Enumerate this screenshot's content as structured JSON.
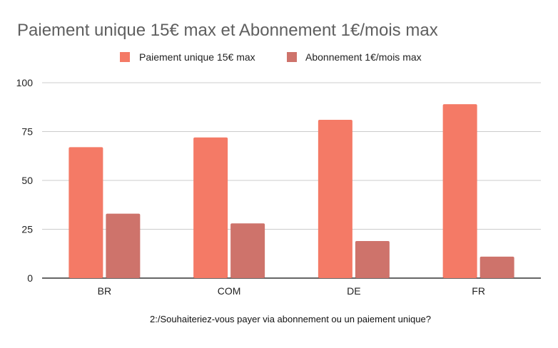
{
  "chart_data": {
    "type": "bar",
    "title": "Paiement unique 15€ max et Abonnement 1€/mois max",
    "xlabel": "2:/Souhaiteriez-vous payer via abonnement ou un paiement unique?",
    "ylabel": "",
    "categories": [
      "BR",
      "COM",
      "DE",
      "FR"
    ],
    "series": [
      {
        "name": "Paiement unique 15€ max",
        "color": "#F47A66",
        "values": [
          67,
          72,
          81,
          89
        ]
      },
      {
        "name": "Abonnement 1€/mois max",
        "color": "#CE736B",
        "values": [
          33,
          28,
          19,
          11
        ]
      }
    ],
    "ylim": [
      0,
      100
    ],
    "yticks": [
      0,
      25,
      50,
      75,
      100
    ],
    "grid": true,
    "legend_position": "top-center"
  }
}
